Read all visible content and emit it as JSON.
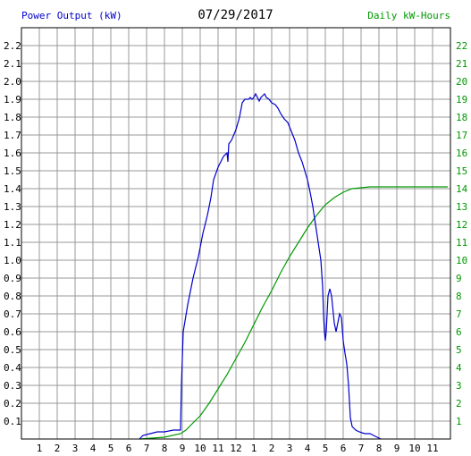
{
  "title": "07/29/2017",
  "left_axis_label": "Power Output (kW)",
  "right_axis_label": "Daily kW-Hours",
  "colors": {
    "power": "#0000cc",
    "energy": "#009900",
    "grid": "#999999",
    "left_label": "#0000cc",
    "right_label": "#009900"
  },
  "chart_data": {
    "type": "line",
    "title": "07/29/2017",
    "x_ticks": [
      "1",
      "2",
      "3",
      "4",
      "5",
      "6",
      "7",
      "8",
      "9",
      "10",
      "11",
      "12",
      "1",
      "2",
      "3",
      "4",
      "5",
      "6",
      "7",
      "8",
      "9",
      "10",
      "11"
    ],
    "x_range_hours": [
      0,
      24
    ],
    "y_left": {
      "label": "Power Output (kW)",
      "range": [
        0,
        2.3
      ],
      "ticks": [
        "0.1",
        "0.2",
        "0.3",
        "0.4",
        "0.5",
        "0.6",
        "0.7",
        "0.8",
        "0.9",
        "1.0",
        "1.1",
        "1.2",
        "1.3",
        "1.4",
        "1.5",
        "1.6",
        "1.7",
        "1.8",
        "1.9",
        "2.0",
        "2.1",
        "2.2"
      ]
    },
    "y_right": {
      "label": "Daily kW-Hours",
      "range": [
        0,
        23
      ],
      "ticks": [
        "1",
        "2",
        "3",
        "4",
        "5",
        "6",
        "7",
        "8",
        "9",
        "10",
        "11",
        "12",
        "13",
        "14",
        "15",
        "16",
        "17",
        "18",
        "19",
        "20",
        "21",
        "22"
      ]
    },
    "grid": true,
    "series": [
      {
        "name": "Power Output (kW)",
        "axis": "left",
        "points": [
          [
            6.6,
            0
          ],
          [
            6.8,
            0.02
          ],
          [
            7.2,
            0.03
          ],
          [
            7.6,
            0.04
          ],
          [
            8.0,
            0.04
          ],
          [
            8.5,
            0.05
          ],
          [
            8.9,
            0.05
          ],
          [
            8.95,
            0.3
          ],
          [
            9.05,
            0.6
          ],
          [
            9.3,
            0.75
          ],
          [
            9.6,
            0.9
          ],
          [
            9.9,
            1.02
          ],
          [
            10.15,
            1.15
          ],
          [
            10.4,
            1.25
          ],
          [
            10.6,
            1.35
          ],
          [
            10.75,
            1.45
          ],
          [
            11.0,
            1.52
          ],
          [
            11.3,
            1.58
          ],
          [
            11.5,
            1.6
          ],
          [
            11.55,
            1.55
          ],
          [
            11.6,
            1.65
          ],
          [
            11.75,
            1.67
          ],
          [
            12.0,
            1.73
          ],
          [
            12.2,
            1.8
          ],
          [
            12.35,
            1.88
          ],
          [
            12.5,
            1.9
          ],
          [
            12.7,
            1.9
          ],
          [
            12.8,
            1.91
          ],
          [
            12.9,
            1.9
          ],
          [
            13.0,
            1.91
          ],
          [
            13.1,
            1.93
          ],
          [
            13.2,
            1.91
          ],
          [
            13.3,
            1.89
          ],
          [
            13.4,
            1.91
          ],
          [
            13.5,
            1.92
          ],
          [
            13.6,
            1.93
          ],
          [
            13.7,
            1.91
          ],
          [
            13.85,
            1.9
          ],
          [
            14.0,
            1.88
          ],
          [
            14.2,
            1.87
          ],
          [
            14.35,
            1.85
          ],
          [
            14.5,
            1.82
          ],
          [
            14.7,
            1.79
          ],
          [
            14.9,
            1.77
          ],
          [
            15.1,
            1.72
          ],
          [
            15.3,
            1.67
          ],
          [
            15.5,
            1.6
          ],
          [
            15.7,
            1.55
          ],
          [
            15.85,
            1.5
          ],
          [
            16.0,
            1.45
          ],
          [
            16.15,
            1.38
          ],
          [
            16.3,
            1.3
          ],
          [
            16.45,
            1.2
          ],
          [
            16.6,
            1.1
          ],
          [
            16.75,
            1.0
          ],
          [
            16.85,
            0.85
          ],
          [
            16.9,
            0.7
          ],
          [
            16.95,
            0.6
          ],
          [
            17.0,
            0.55
          ],
          [
            17.05,
            0.6
          ],
          [
            17.15,
            0.8
          ],
          [
            17.25,
            0.84
          ],
          [
            17.35,
            0.8
          ],
          [
            17.4,
            0.75
          ],
          [
            17.5,
            0.65
          ],
          [
            17.6,
            0.6
          ],
          [
            17.7,
            0.65
          ],
          [
            17.8,
            0.7
          ],
          [
            17.9,
            0.68
          ],
          [
            18.0,
            0.55
          ],
          [
            18.1,
            0.48
          ],
          [
            18.2,
            0.42
          ],
          [
            18.3,
            0.3
          ],
          [
            18.4,
            0.12
          ],
          [
            18.5,
            0.07
          ],
          [
            18.7,
            0.05
          ],
          [
            18.9,
            0.04
          ],
          [
            19.2,
            0.03
          ],
          [
            19.5,
            0.03
          ],
          [
            19.7,
            0.02
          ],
          [
            19.9,
            0.01
          ],
          [
            20.1,
            0
          ]
        ]
      },
      {
        "name": "Daily kW-Hours",
        "axis": "right",
        "points": [
          [
            6.6,
            0
          ],
          [
            8.0,
            0.1
          ],
          [
            8.9,
            0.3
          ],
          [
            9.2,
            0.5
          ],
          [
            9.5,
            0.8
          ],
          [
            10.0,
            1.3
          ],
          [
            10.5,
            2.0
          ],
          [
            11.0,
            2.8
          ],
          [
            11.5,
            3.6
          ],
          [
            12.0,
            4.5
          ],
          [
            12.5,
            5.4
          ],
          [
            13.0,
            6.4
          ],
          [
            13.5,
            7.4
          ],
          [
            14.0,
            8.3
          ],
          [
            14.5,
            9.3
          ],
          [
            15.0,
            10.2
          ],
          [
            15.5,
            11.0
          ],
          [
            16.0,
            11.8
          ],
          [
            16.5,
            12.5
          ],
          [
            17.0,
            13.1
          ],
          [
            17.5,
            13.5
          ],
          [
            18.0,
            13.8
          ],
          [
            18.5,
            14.0
          ],
          [
            19.0,
            14.05
          ],
          [
            19.5,
            14.1
          ],
          [
            20.0,
            14.1
          ],
          [
            21.0,
            14.1
          ],
          [
            22.0,
            14.1
          ],
          [
            23.0,
            14.1
          ],
          [
            23.85,
            14.1
          ]
        ]
      }
    ]
  }
}
